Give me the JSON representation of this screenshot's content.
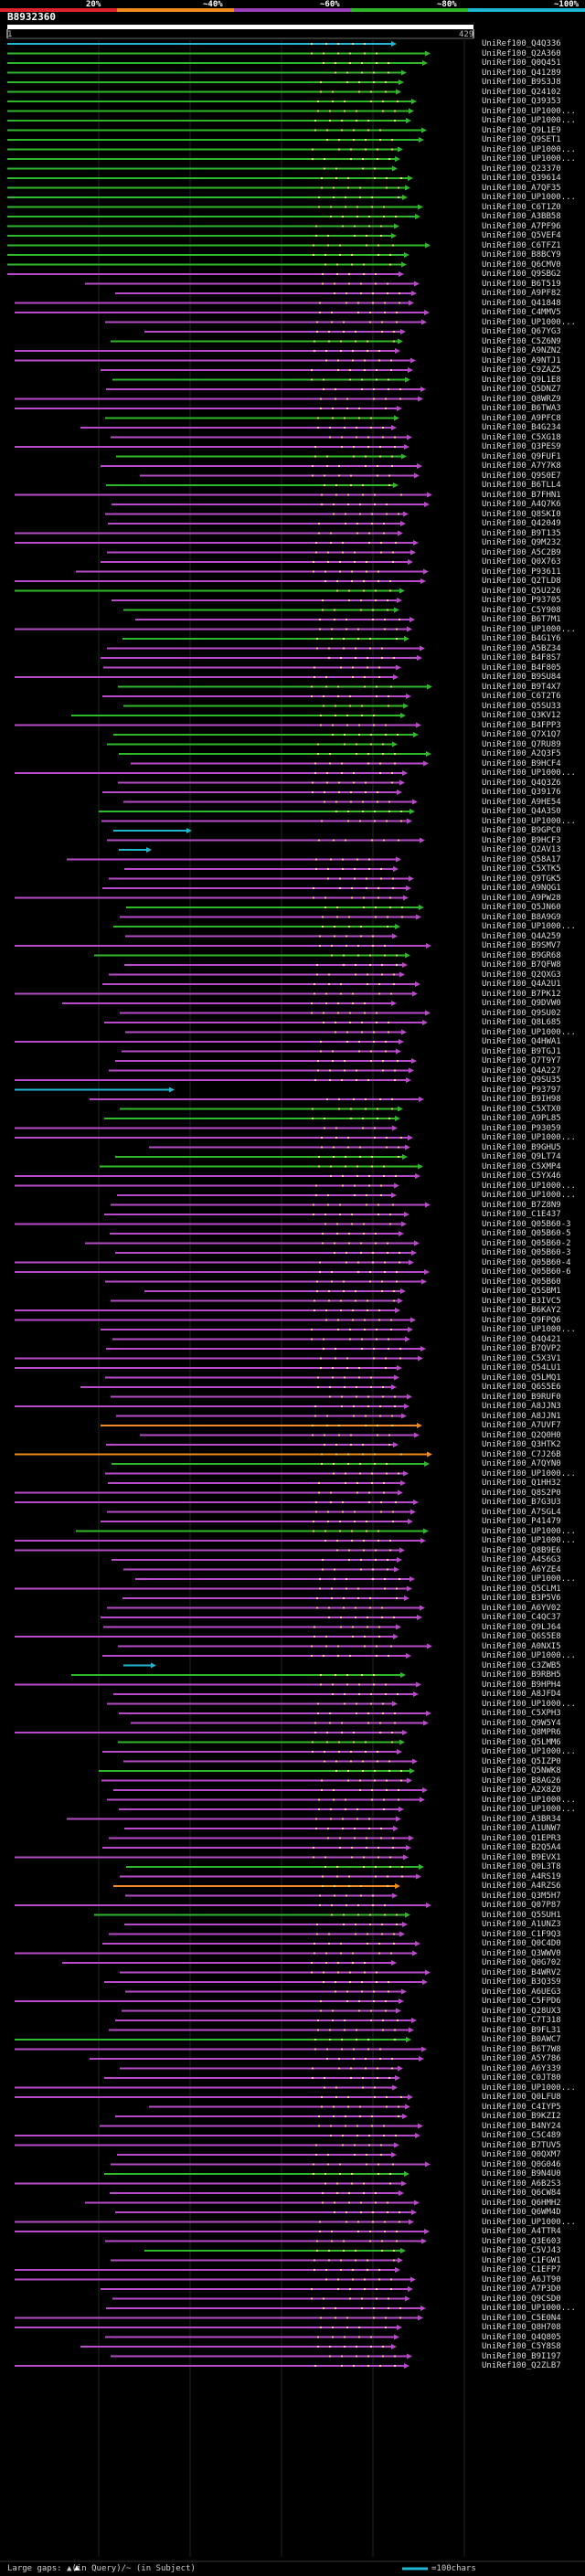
{
  "scale": {
    "labels": [
      "20%",
      "~40%",
      "~60%",
      "~80%",
      "~100%"
    ],
    "colors": [
      "#e0202a",
      "#f08a1a",
      "#9a3fb8",
      "#2fb82a",
      "#1fb7d0"
    ]
  },
  "header": {
    "accession": "B8932360",
    "range_start": "1",
    "range_end": "429"
  },
  "footer": {
    "legend_text": "Large gaps: ▲(in Query)/~ (in Subject)",
    "scale_note": "=100chars"
  },
  "hits": [
    {
      "name": "UniRef100_Q4Q336",
      "pct": 95
    },
    {
      "name": "UniRef100_Q2A360",
      "pct": 68
    },
    {
      "name": "UniRef100_Q0Q451",
      "pct": 68
    },
    {
      "name": "UniRef100_Q41289",
      "pct": 68
    },
    {
      "name": "UniRef100_B9S3J8",
      "pct": 68
    },
    {
      "name": "UniRef100_Q24102",
      "pct": 68
    },
    {
      "name": "UniRef100_Q39353",
      "pct": 68
    },
    {
      "name": "UniRef100_UP1000...",
      "pct": 68
    },
    {
      "name": "UniRef100_UP1000...",
      "pct": 68
    },
    {
      "name": "UniRef100_Q9L1E9",
      "pct": 68
    },
    {
      "name": "UniRef100_Q9SET1",
      "pct": 68
    },
    {
      "name": "UniRef100_UP1000...",
      "pct": 68
    },
    {
      "name": "UniRef100_UP1000...",
      "pct": 68
    },
    {
      "name": "UniRef100_Q23370",
      "pct": 68
    },
    {
      "name": "UniRef100_Q39614",
      "pct": 68
    },
    {
      "name": "UniRef100_A7QF35",
      "pct": 68
    },
    {
      "name": "UniRef100_UP1000...",
      "pct": 68
    },
    {
      "name": "UniRef100_C6T1Z0",
      "pct": 68
    },
    {
      "name": "UniRef100_A3BB58",
      "pct": 68
    },
    {
      "name": "UniRef100_A7PF96",
      "pct": 68
    },
    {
      "name": "UniRef100_Q5VEF4",
      "pct": 68
    },
    {
      "name": "UniRef100_C6TFZ1",
      "pct": 68
    },
    {
      "name": "UniRef100_B8BCY9",
      "pct": 68
    },
    {
      "name": "UniRef100_Q6CMV0",
      "pct": 68
    },
    {
      "name": "UniRef100_Q9SBG2",
      "pct": 50
    },
    {
      "name": "UniRef100_B6T519",
      "pct": 50
    },
    {
      "name": "UniRef100_A9PF82",
      "pct": 50
    },
    {
      "name": "UniRef100_Q41848",
      "pct": 50
    },
    {
      "name": "UniRef100_C4MMV5",
      "pct": 50
    },
    {
      "name": "UniRef100_UP1000...",
      "pct": 50
    },
    {
      "name": "UniRef100_Q67YG3",
      "pct": 50
    },
    {
      "name": "UniRef100_C5Z6N9",
      "pct": 68
    },
    {
      "name": "UniRef100_A9NZN2",
      "pct": 50
    },
    {
      "name": "UniRef100_A9NTJ1",
      "pct": 50
    },
    {
      "name": "UniRef100_C9ZAZ5",
      "pct": 50
    },
    {
      "name": "UniRef100_Q9L1E8",
      "pct": 68
    },
    {
      "name": "UniRef100_Q5DNZ7",
      "pct": 50
    },
    {
      "name": "UniRef100_Q8WRZ9",
      "pct": 50
    },
    {
      "name": "UniRef100_B6TWA3",
      "pct": 50
    },
    {
      "name": "UniRef100_A9PFC8",
      "pct": 68
    },
    {
      "name": "UniRef100_B4G234",
      "pct": 50
    },
    {
      "name": "UniRef100_C5XG18",
      "pct": 50
    },
    {
      "name": "UniRef100_Q3PES9",
      "pct": 50
    },
    {
      "name": "UniRef100_Q9FUF1",
      "pct": 68
    },
    {
      "name": "UniRef100_A7Y7K8",
      "pct": 50
    },
    {
      "name": "UniRef100_Q9S0E7",
      "pct": 50
    },
    {
      "name": "UniRef100_B6TLL4",
      "pct": 68
    },
    {
      "name": "UniRef100_B7FHN1",
      "pct": 50
    },
    {
      "name": "UniRef100_A4Q7K6",
      "pct": 50
    },
    {
      "name": "UniRef100_Q8SKI0",
      "pct": 50
    },
    {
      "name": "UniRef100_Q42049",
      "pct": 50
    },
    {
      "name": "UniRef100_B9T135",
      "pct": 50
    },
    {
      "name": "UniRef100_Q9M232",
      "pct": 50
    },
    {
      "name": "UniRef100_A5C2B9",
      "pct": 50
    },
    {
      "name": "UniRef100_Q0X763",
      "pct": 50
    },
    {
      "name": "UniRef100_P93611",
      "pct": 50
    },
    {
      "name": "UniRef100_Q2TLD8",
      "pct": 50
    },
    {
      "name": "UniRef100_Q5U226",
      "pct": 68
    },
    {
      "name": "UniRef100_P93705",
      "pct": 50
    },
    {
      "name": "UniRef100_C5Y908",
      "pct": 68
    },
    {
      "name": "UniRef100_B6T7M1",
      "pct": 50
    },
    {
      "name": "UniRef100_UP1000...",
      "pct": 50
    },
    {
      "name": "UniRef100_B4G1Y6",
      "pct": 68
    },
    {
      "name": "UniRef100_A5BZ34",
      "pct": 50
    },
    {
      "name": "UniRef100_B4F8S7",
      "pct": 50
    },
    {
      "name": "UniRef100_B4F805",
      "pct": 50
    },
    {
      "name": "UniRef100_B9SU84",
      "pct": 50
    },
    {
      "name": "UniRef100_B9T4X7",
      "pct": 68
    },
    {
      "name": "UniRef100_C6T2T6",
      "pct": 50
    },
    {
      "name": "UniRef100_Q5SU33",
      "pct": 68
    },
    {
      "name": "UniRef100_Q3KV12",
      "pct": 68
    },
    {
      "name": "UniRef100_B4FPP3",
      "pct": 50
    },
    {
      "name": "UniRef100_Q7X1Q7",
      "pct": 68
    },
    {
      "name": "UniRef100_Q7RU89",
      "pct": 68
    },
    {
      "name": "UniRef100_A2Q3F5",
      "pct": 68
    },
    {
      "name": "UniRef100_B9HCF4",
      "pct": 50
    },
    {
      "name": "UniRef100_UP1000...",
      "pct": 50
    },
    {
      "name": "UniRef100_Q4Q3Z6",
      "pct": 50
    },
    {
      "name": "UniRef100_Q39176",
      "pct": 50
    },
    {
      "name": "UniRef100_A9HE54",
      "pct": 50
    },
    {
      "name": "UniRef100_Q4A3S0",
      "pct": 68
    },
    {
      "name": "UniRef100_UP1000...",
      "pct": 50
    },
    {
      "name": "UniRef100_B9GPC0",
      "pct": 95
    },
    {
      "name": "UniRef100_B9HCF3",
      "pct": 50
    },
    {
      "name": "UniRef100_Q2AV13",
      "pct": 95
    },
    {
      "name": "UniRef100_Q58A17",
      "pct": 50
    },
    {
      "name": "UniRef100_C5XTK5",
      "pct": 50
    },
    {
      "name": "UniRef100_Q9TGK5",
      "pct": 50
    },
    {
      "name": "UniRef100_A9NQG1",
      "pct": 50
    },
    {
      "name": "UniRef100_A9PW28",
      "pct": 50
    },
    {
      "name": "UniRef100_Q5JN60",
      "pct": 68
    },
    {
      "name": "UniRef100_B8A9G9",
      "pct": 50
    },
    {
      "name": "UniRef100_UP1000...",
      "pct": 68
    },
    {
      "name": "UniRef100_Q4A259",
      "pct": 50
    },
    {
      "name": "UniRef100_B9SMV7",
      "pct": 50
    },
    {
      "name": "UniRef100_B9GR68",
      "pct": 68
    },
    {
      "name": "UniRef100_B7QFW8",
      "pct": 50
    },
    {
      "name": "UniRef100_Q2QXG3",
      "pct": 50
    },
    {
      "name": "UniRef100_Q4A2U1",
      "pct": 50
    },
    {
      "name": "UniRef100_B7PK12",
      "pct": 50
    },
    {
      "name": "UniRef100_Q9DVW0",
      "pct": 50
    },
    {
      "name": "UniRef100_Q9SU02",
      "pct": 50
    },
    {
      "name": "UniRef100_Q8L685",
      "pct": 50
    },
    {
      "name": "UniRef100_UP1000...",
      "pct": 50
    },
    {
      "name": "UniRef100_Q4HWA1",
      "pct": 50
    },
    {
      "name": "UniRef100_B9TGJ1",
      "pct": 50
    },
    {
      "name": "UniRef100_Q7T9Y7",
      "pct": 50
    },
    {
      "name": "UniRef100_Q4A227",
      "pct": 50
    },
    {
      "name": "UniRef100_Q9SU35",
      "pct": 50
    },
    {
      "name": "UniRef100_P93797",
      "pct": 95
    },
    {
      "name": "UniRef100_B9IH98",
      "pct": 50
    },
    {
      "name": "UniRef100_C5XTX0",
      "pct": 68
    },
    {
      "name": "UniRef100_A9PL85",
      "pct": 68
    },
    {
      "name": "UniRef100_P93059",
      "pct": 50
    },
    {
      "name": "UniRef100_UP1000...",
      "pct": 50
    },
    {
      "name": "UniRef100_B9GHU5",
      "pct": 50
    },
    {
      "name": "UniRef100_Q9LT74",
      "pct": 68
    },
    {
      "name": "UniRef100_C5XMP4",
      "pct": 68
    },
    {
      "name": "UniRef100_C5YX46",
      "pct": 50
    },
    {
      "name": "UniRef100_UP1000...",
      "pct": 50
    },
    {
      "name": "UniRef100_UP1000...",
      "pct": 50
    },
    {
      "name": "UniRef100_B7Z8N9",
      "pct": 50
    },
    {
      "name": "UniRef100_C1E437",
      "pct": 50
    },
    {
      "name": "UniRef100_Q05B60-3",
      "pct": 50
    },
    {
      "name": "UniRef100_Q05B60-5",
      "pct": 50
    },
    {
      "name": "UniRef100_Q05B60-2",
      "pct": 50
    },
    {
      "name": "UniRef100_Q05B60-3",
      "pct": 50
    },
    {
      "name": "UniRef100_Q05B60-4",
      "pct": 50
    },
    {
      "name": "UniRef100_Q05B60-6",
      "pct": 50
    },
    {
      "name": "UniRef100_Q05B60",
      "pct": 50
    },
    {
      "name": "UniRef100_Q5SBM1",
      "pct": 50
    },
    {
      "name": "UniRef100_B3IVC5",
      "pct": 50
    },
    {
      "name": "UniRef100_B6KAY2",
      "pct": 50
    },
    {
      "name": "UniRef100_Q9FPQ6",
      "pct": 50
    },
    {
      "name": "UniRef100_UP1000...",
      "pct": 50
    },
    {
      "name": "UniRef100_Q4Q421",
      "pct": 50
    },
    {
      "name": "UniRef100_B7QVP2",
      "pct": 50
    },
    {
      "name": "UniRef100_C5X3V1",
      "pct": 50
    },
    {
      "name": "UniRef100_Q54LU1",
      "pct": 50
    },
    {
      "name": "UniRef100_Q5LMQ1",
      "pct": 50
    },
    {
      "name": "UniRef100_Q6S5E6",
      "pct": 50
    },
    {
      "name": "UniRef100_B9RUF0",
      "pct": 50
    },
    {
      "name": "UniRef100_A8JJN3",
      "pct": 50
    },
    {
      "name": "UniRef100_A8JJN1",
      "pct": 50
    },
    {
      "name": "UniRef100_A7UVF7",
      "pct": 40
    },
    {
      "name": "UniRef100_Q2Q0H0",
      "pct": 50
    },
    {
      "name": "UniRef100_Q3HTK2",
      "pct": 50
    },
    {
      "name": "UniRef100_C7J26B",
      "pct": 40
    },
    {
      "name": "UniRef100_A7QYN0",
      "pct": 68
    },
    {
      "name": "UniRef100_UP1000...",
      "pct": 50
    },
    {
      "name": "UniRef100_Q1HH32",
      "pct": 50
    },
    {
      "name": "UniRef100_Q8S2P0",
      "pct": 50
    },
    {
      "name": "UniRef100_B7G3U3",
      "pct": 50
    },
    {
      "name": "UniRef100_A7SGL4",
      "pct": 50
    },
    {
      "name": "UniRef100_P41479",
      "pct": 50
    },
    {
      "name": "UniRef100_UP1000...",
      "pct": 68
    },
    {
      "name": "UniRef100_UP1000...",
      "pct": 50
    },
    {
      "name": "UniRef100_Q8B9E6",
      "pct": 50
    },
    {
      "name": "UniRef100_A4S6G3",
      "pct": 50
    },
    {
      "name": "UniRef100_A6YZE4",
      "pct": 50
    },
    {
      "name": "UniRef100_UP1000...",
      "pct": 50
    },
    {
      "name": "UniRef100_Q5CLM1",
      "pct": 50
    },
    {
      "name": "UniRef100_B3P5V6",
      "pct": 50
    },
    {
      "name": "UniRef100_A6YV02",
      "pct": 50
    },
    {
      "name": "UniRef100_C4QC37",
      "pct": 50
    },
    {
      "name": "UniRef100_Q9LJ64",
      "pct": 50
    },
    {
      "name": "UniRef100_Q6S5E8",
      "pct": 50
    },
    {
      "name": "UniRef100_A0NXI5",
      "pct": 50
    },
    {
      "name": "UniRef100_UP1000...",
      "pct": 50
    },
    {
      "name": "UniRef100_C3ZWB5",
      "pct": 95
    },
    {
      "name": "UniRef100_B9RBH5",
      "pct": 68
    },
    {
      "name": "UniRef100_B9HPH4",
      "pct": 50
    },
    {
      "name": "UniRef100_A8JFD4",
      "pct": 50
    },
    {
      "name": "UniRef100_UP1000...",
      "pct": 50
    },
    {
      "name": "UniRef100_C5XPH3",
      "pct": 50
    },
    {
      "name": "UniRef100_Q9W5Y4",
      "pct": 50
    },
    {
      "name": "UniRef100_Q8MPR6",
      "pct": 50
    },
    {
      "name": "UniRef100_Q5LMM6",
      "pct": 68
    },
    {
      "name": "UniRef100_UP1000...",
      "pct": 50
    },
    {
      "name": "UniRef100_Q5IZP0",
      "pct": 50
    },
    {
      "name": "UniRef100_Q5NWK8",
      "pct": 68
    },
    {
      "name": "UniRef100_B8AG26",
      "pct": 50
    },
    {
      "name": "UniRef100_A2X8Z0",
      "pct": 50
    },
    {
      "name": "UniRef100_UP1000...",
      "pct": 50
    },
    {
      "name": "UniRef100_UP1000...",
      "pct": 50
    },
    {
      "name": "UniRef100_A3BR34",
      "pct": 50
    },
    {
      "name": "UniRef100_A1UNW7",
      "pct": 50
    },
    {
      "name": "UniRef100_Q1EPR3",
      "pct": 50
    },
    {
      "name": "UniRef100_B2Q5A4",
      "pct": 50
    },
    {
      "name": "UniRef100_B9EVX1",
      "pct": 50
    },
    {
      "name": "UniRef100_Q0L3T8",
      "pct": 68
    },
    {
      "name": "UniRef100_A4RS19",
      "pct": 50
    },
    {
      "name": "UniRef100_A4RZS6",
      "pct": 40
    },
    {
      "name": "UniRef100_Q3M5H7",
      "pct": 50
    },
    {
      "name": "UniRef100_Q07P87",
      "pct": 50
    },
    {
      "name": "UniRef100_Q5SUH1",
      "pct": 68
    },
    {
      "name": "UniRef100_A1UNZ3",
      "pct": 50
    },
    {
      "name": "UniRef100_C1F9Q3",
      "pct": 50
    },
    {
      "name": "UniRef100_Q0C4D0",
      "pct": 50
    },
    {
      "name": "UniRef100_Q3WWV0",
      "pct": 50
    },
    {
      "name": "UniRef100_Q0G702",
      "pct": 50
    },
    {
      "name": "UniRef100_B4WRV2",
      "pct": 50
    },
    {
      "name": "UniRef100_B3Q3S9",
      "pct": 50
    },
    {
      "name": "UniRef100_A6UEG3",
      "pct": 50
    },
    {
      "name": "UniRef100_C5FPD6",
      "pct": 50
    },
    {
      "name": "UniRef100_Q28UX3",
      "pct": 50
    },
    {
      "name": "UniRef100_C7T318",
      "pct": 50
    },
    {
      "name": "UniRef100_B9FL31",
      "pct": 50
    },
    {
      "name": "UniRef100_B0AWC7",
      "pct": 68
    },
    {
      "name": "UniRef100_B6T7W8",
      "pct": 50
    },
    {
      "name": "UniRef100_A5Y786",
      "pct": 50
    },
    {
      "name": "UniRef100_A6Y339",
      "pct": 50
    },
    {
      "name": "UniRef100_C0JT80",
      "pct": 50
    },
    {
      "name": "UniRef100_UP1000...",
      "pct": 50
    },
    {
      "name": "UniRef100_Q0LFU8",
      "pct": 50
    },
    {
      "name": "UniRef100_C4IYP5",
      "pct": 50
    },
    {
      "name": "UniRef100_B9KZI2",
      "pct": 50
    },
    {
      "name": "UniRef100_B4NY24",
      "pct": 50
    },
    {
      "name": "UniRef100_C5C489",
      "pct": 50
    },
    {
      "name": "UniRef100_B7TUV5",
      "pct": 50
    },
    {
      "name": "UniRef100_Q0QXM7",
      "pct": 50
    },
    {
      "name": "UniRef100_Q0G046",
      "pct": 50
    },
    {
      "name": "UniRef100_B9N4U0",
      "pct": 68
    },
    {
      "name": "UniRef100_A6B2S3",
      "pct": 50
    },
    {
      "name": "UniRef100_Q6CW84",
      "pct": 50
    },
    {
      "name": "UniRef100_Q6HMH2",
      "pct": 50
    },
    {
      "name": "UniRef100_Q6WM4D",
      "pct": 50
    },
    {
      "name": "UniRef100_UP1000...",
      "pct": 50
    },
    {
      "name": "UniRef100_A4TTR4",
      "pct": 50
    },
    {
      "name": "UniRef100_Q3E603",
      "pct": 50
    },
    {
      "name": "UniRef100_C5VJ43",
      "pct": 68
    },
    {
      "name": "UniRef100_C1FGW1",
      "pct": 50
    },
    {
      "name": "UniRef100_C1EFP7",
      "pct": 50
    },
    {
      "name": "UniRef100_A6JT90",
      "pct": 50
    },
    {
      "name": "UniRef100_A7P3D0",
      "pct": 50
    },
    {
      "name": "UniRef100_Q9CSD0",
      "pct": 50
    },
    {
      "name": "UniRef100_UP1000...",
      "pct": 50
    },
    {
      "name": "UniRef100_C5E0N4",
      "pct": 50
    },
    {
      "name": "UniRef100_Q8H708",
      "pct": 50
    },
    {
      "name": "UniRef100_Q4Q805",
      "pct": 50
    },
    {
      "name": "UniRef100_C5Y8S8",
      "pct": 50
    },
    {
      "name": "UniRef100_B9I197",
      "pct": 50
    },
    {
      "name": "UniRef100_Q2ZLB7",
      "pct": 50
    }
  ]
}
